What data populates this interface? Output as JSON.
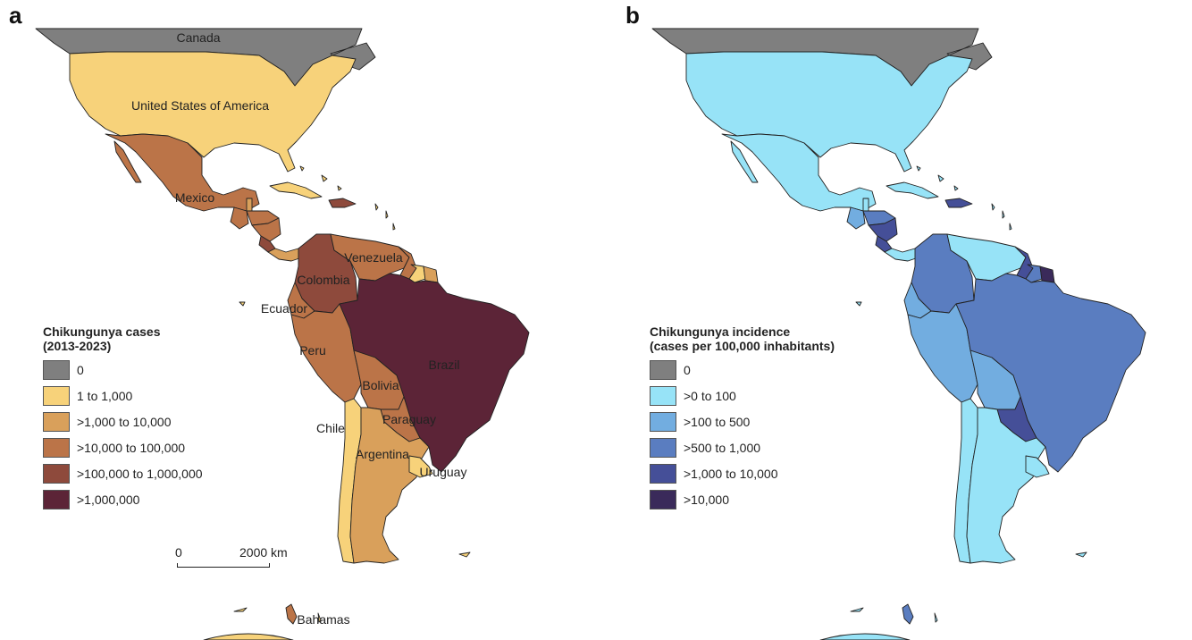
{
  "panels": [
    {
      "id": "a",
      "label": "a",
      "legend": {
        "title_line1": "Chikungunya cases",
        "title_line2": "(2013-2023)",
        "classes": [
          {
            "label": "0",
            "color": "#7f7f7f"
          },
          {
            "label": "1 to 1,000",
            "color": "#f7d27a"
          },
          {
            "label": ">1,000 to 10,000",
            "color": "#d9a05b"
          },
          {
            "label": ">10,000 to 100,000",
            "color": "#bb7448"
          },
          {
            "label": ">100,000 to 1,000,000",
            "color": "#8e4a3c"
          },
          {
            "label": ">1,000,000",
            "color": "#5c2437"
          }
        ]
      },
      "country_classes": {
        "Canada": 0,
        "United States of America": 1,
        "Mexico": 3,
        "Cuba": 1,
        "Hispaniola": 4,
        "Guatemala": 3,
        "Belize": 2,
        "Honduras": 3,
        "Nicaragua": 3,
        "Costa Rica": 4,
        "Panama": 2,
        "Colombia": 4,
        "Venezuela": 3,
        "Guyana": 3,
        "Suriname": 1,
        "French Guiana": 2,
        "Ecuador": 3,
        "Peru": 3,
        "Brazil": 5,
        "Bolivia": 3,
        "Paraguay": 3,
        "Chile": 1,
        "Argentina": 2,
        "Uruguay": 1,
        "Bahamas": 3
      },
      "country_labels": [
        "Canada",
        "United States of America",
        "Mexico",
        "Venezuela",
        "Colombia",
        "Ecuador",
        "Peru",
        "Brazil",
        "Bolivia",
        "Paraguay",
        "Chile",
        "Argentina",
        "Uruguay",
        "Bahamas"
      ],
      "scale_bar": {
        "start": "0",
        "end": "2000 km"
      }
    },
    {
      "id": "b",
      "label": "b",
      "legend": {
        "title_line1": "Chikungunya incidence",
        "title_line2": "(cases per 100,000 inhabitants)",
        "classes": [
          {
            "label": "0",
            "color": "#7f7f7f"
          },
          {
            "label": ">0 to 100",
            "color": "#97e3f7"
          },
          {
            "label": ">100 to 500",
            "color": "#72ade0"
          },
          {
            "label": ">500 to 1,000",
            "color": "#5a7dc0"
          },
          {
            "label": ">1,000 to 10,000",
            "color": "#454f98"
          },
          {
            "label": ">10,000",
            "color": "#3a2a5a"
          }
        ]
      },
      "country_classes": {
        "Canada": 0,
        "United States of America": 1,
        "Mexico": 1,
        "Cuba": 1,
        "Hispaniola": 4,
        "Guatemala": 2,
        "Belize": 1,
        "Honduras": 3,
        "Nicaragua": 4,
        "Costa Rica": 4,
        "Panama": 1,
        "Colombia": 3,
        "Venezuela": 1,
        "Guyana": 4,
        "Suriname": 3,
        "French Guiana": 5,
        "Ecuador": 2,
        "Peru": 2,
        "Brazil": 3,
        "Bolivia": 2,
        "Paraguay": 4,
        "Chile": 1,
        "Argentina": 1,
        "Uruguay": 1,
        "Bahamas": 3
      },
      "country_labels": []
    }
  ]
}
